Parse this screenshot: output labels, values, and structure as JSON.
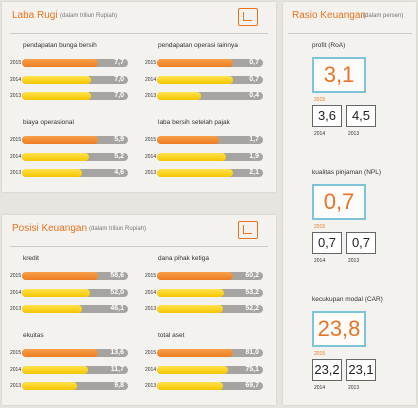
{
  "sections": [
    {
      "title": "Laba Rugi",
      "subtitle": "(dalam triliun Rupiah)",
      "groups": [
        {
          "label": "pendapatan bunga bersih",
          "years": [
            "2015",
            "2014",
            "2013"
          ],
          "values": [
            7.7,
            7.0,
            7.0
          ],
          "value_labels": [
            "7,7",
            "7,0",
            "7,0"
          ]
        },
        {
          "label": "pendapatan operasi lainnya",
          "years": [
            "2015",
            "2014",
            "2013"
          ],
          "values": [
            0.7,
            0.7,
            0.4
          ],
          "value_labels": [
            "0,7",
            "0,7",
            "0,4"
          ]
        },
        {
          "label": "biaya operasional",
          "years": [
            "2015",
            "2014",
            "2013"
          ],
          "values": [
            5.9,
            5.2,
            4.6
          ],
          "value_labels": [
            "5,9",
            "5,2",
            "4,6"
          ]
        },
        {
          "label": "laba bersih setelah pajak",
          "years": [
            "2015",
            "2014",
            "2013"
          ],
          "values": [
            1.7,
            1.9,
            2.1
          ],
          "value_labels": [
            "1,7",
            "1,9",
            "2,1"
          ]
        }
      ]
    },
    {
      "title": "Posisi Keuangan",
      "subtitle": "(dalam triliun Rupiah)",
      "groups": [
        {
          "label": "kredit",
          "years": [
            "2015",
            "2014",
            "2013"
          ],
          "values": [
            58.6,
            52.0,
            46.1
          ],
          "value_labels": [
            "58,6",
            "52,0",
            "46,1"
          ]
        },
        {
          "label": "dana pihak ketiga",
          "years": [
            "2015",
            "2014",
            "2013"
          ],
          "values": [
            60.2,
            53.2,
            52.2
          ],
          "value_labels": [
            "60,2",
            "53,2",
            "52,2"
          ]
        },
        {
          "label": "ekuitas",
          "years": [
            "2015",
            "2014",
            "2013"
          ],
          "values": [
            13.6,
            11.7,
            9.8
          ],
          "value_labels": [
            "13,6",
            "11,7",
            "9,8"
          ]
        },
        {
          "label": "total aset",
          "years": [
            "2015",
            "2014",
            "2013"
          ],
          "values": [
            81.0,
            75.1,
            69.7
          ],
          "value_labels": [
            "81,0",
            "75,1",
            "69,7"
          ]
        }
      ]
    }
  ],
  "ratios": {
    "title": "Rasio Keuangan",
    "subtitle": "(dalam persen)",
    "items": [
      {
        "label": "profit (RoA)",
        "years": [
          "2015",
          "2014",
          "2013"
        ],
        "values": [
          "3,1",
          "3,6",
          "4,5"
        ]
      },
      {
        "label": "kualitas pinjaman (NPL)",
        "years": [
          "2015",
          "2014",
          "2013"
        ],
        "values": [
          "0,7",
          "0,7",
          "0,7"
        ]
      },
      {
        "label": "kecukupan modal (CAR)",
        "years": [
          "2015",
          "2014",
          "2013"
        ],
        "values": [
          "23,8",
          "23,2",
          "23,1"
        ]
      }
    ]
  }
}
